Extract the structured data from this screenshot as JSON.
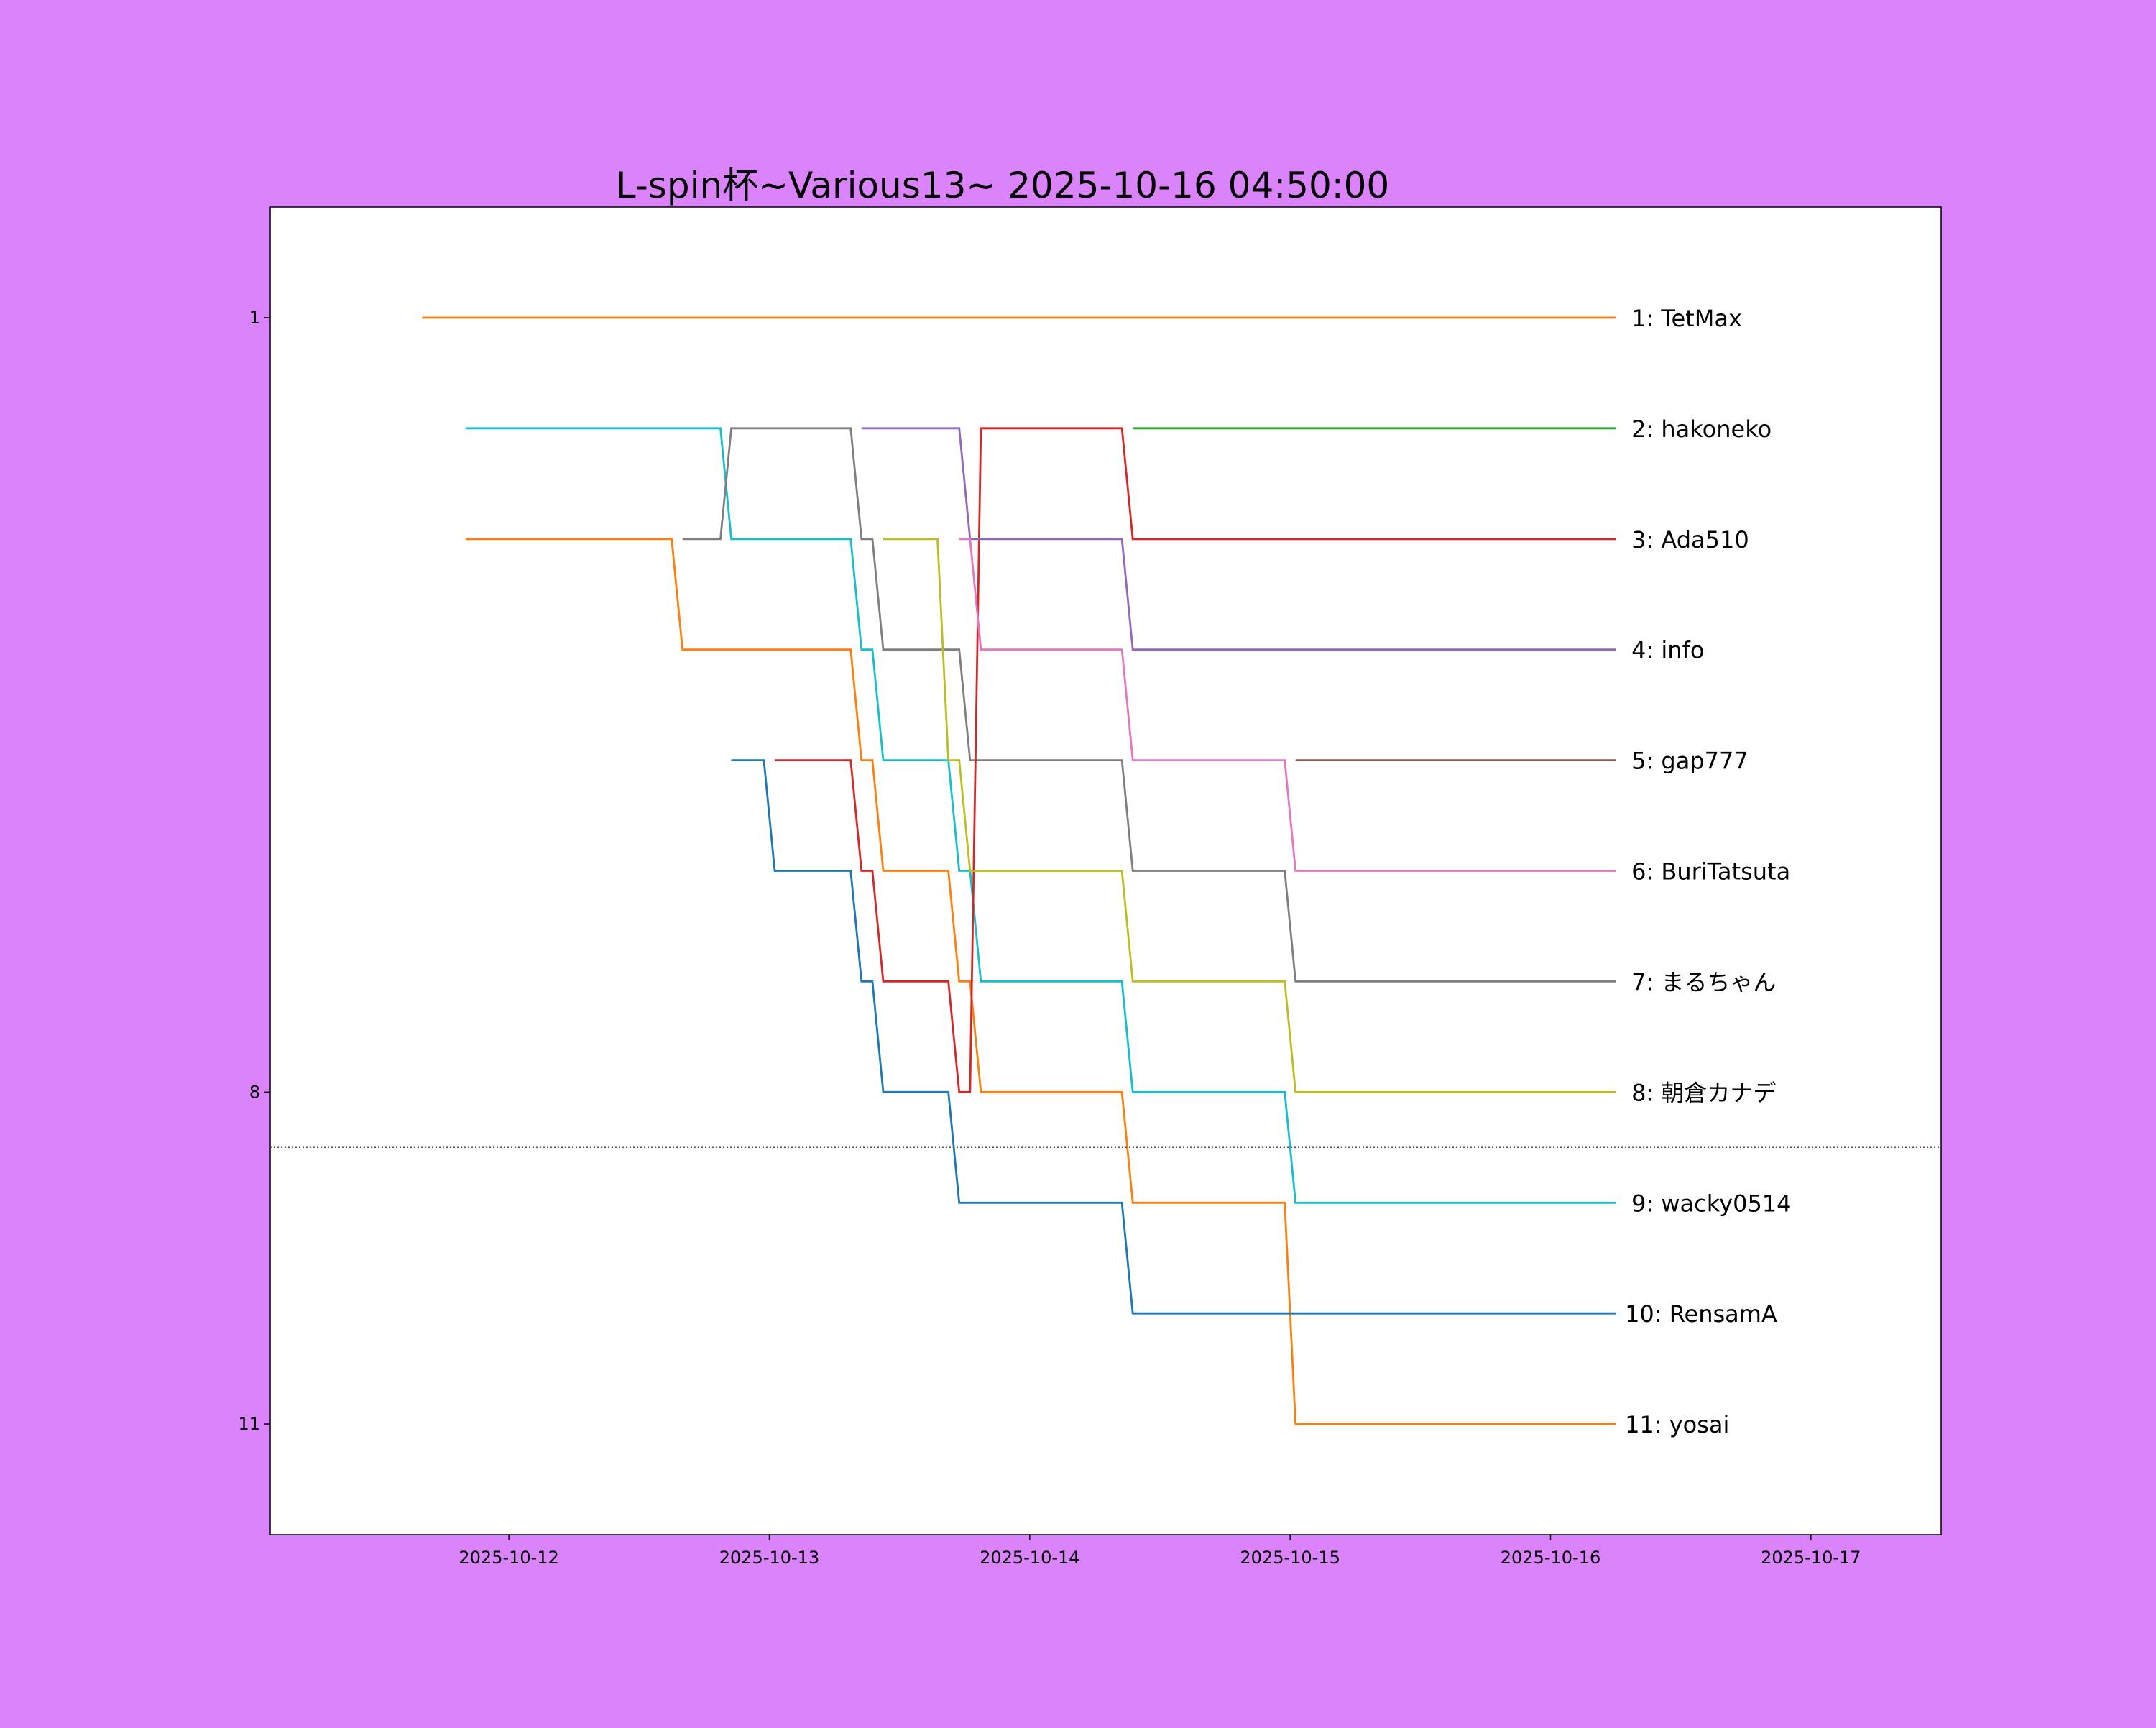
{
  "chart_data": {
    "type": "line",
    "title": "L-spin杯~Various13~ 2025-10-16 04:50:00",
    "xlabel": "",
    "ylabel": "",
    "x_axis": {
      "type": "date",
      "range": [
        "2025-10-11 02:00",
        "2025-10-17 12:00"
      ],
      "ticks": [
        "2025-10-12",
        "2025-10-13",
        "2025-10-14",
        "2025-10-15",
        "2025-10-16",
        "2025-10-17"
      ]
    },
    "y_axis": {
      "inverted": true,
      "range": [
        0,
        12
      ],
      "ticks": [
        1,
        8,
        11
      ]
    },
    "cutoff_line": {
      "rank": 8.5,
      "style": "dotted"
    },
    "grid": false,
    "legend": "none; labels at right end of each line",
    "series": [
      {
        "color": "#ff7f0e",
        "points": [
          [
            "2025-10-11 16:00",
            1
          ],
          [
            "2025-10-16 06:00",
            1
          ]
        ]
      },
      {
        "color": "#17becf",
        "points": [
          [
            "2025-10-11 20:00",
            2
          ],
          [
            "2025-10-12 19:30",
            2
          ],
          [
            "2025-10-12 20:30",
            3
          ],
          [
            "2025-10-13 07:30",
            3
          ],
          [
            "2025-10-13 08:30",
            4
          ],
          [
            "2025-10-13 09:30",
            4
          ],
          [
            "2025-10-13 10:30",
            5
          ],
          [
            "2025-10-13 16:30",
            5
          ],
          [
            "2025-10-13 17:30",
            6
          ],
          [
            "2025-10-13 18:30",
            6
          ],
          [
            "2025-10-13 19:30",
            7
          ],
          [
            "2025-10-14 08:30",
            7
          ],
          [
            "2025-10-14 09:30",
            8
          ],
          [
            "2025-10-14 23:30",
            8
          ],
          [
            "2025-10-15 00:30",
            9
          ],
          [
            "2025-10-16 06:00",
            9
          ]
        ]
      },
      {
        "color": "#ff7f0e",
        "points": [
          [
            "2025-10-11 20:00",
            3
          ],
          [
            "2025-10-12 15:00",
            3
          ],
          [
            "2025-10-12 16:00",
            4
          ],
          [
            "2025-10-13 07:30",
            4
          ],
          [
            "2025-10-13 08:30",
            5
          ],
          [
            "2025-10-13 09:30",
            5
          ],
          [
            "2025-10-13 10:30",
            6
          ],
          [
            "2025-10-13 16:30",
            6
          ],
          [
            "2025-10-13 17:30",
            7
          ],
          [
            "2025-10-13 18:30",
            7
          ],
          [
            "2025-10-13 19:30",
            8
          ],
          [
            "2025-10-14 08:30",
            8
          ],
          [
            "2025-10-14 09:30",
            9
          ],
          [
            "2025-10-14 23:30",
            9
          ],
          [
            "2025-10-15 00:30",
            11
          ],
          [
            "2025-10-16 06:00",
            11
          ]
        ]
      },
      {
        "color": "#7f7f7f",
        "points": [
          [
            "2025-10-12 16:00",
            3
          ],
          [
            "2025-10-12 19:30",
            3
          ],
          [
            "2025-10-12 20:30",
            2
          ],
          [
            "2025-10-13 07:30",
            2
          ],
          [
            "2025-10-13 08:30",
            3
          ],
          [
            "2025-10-13 09:30",
            3
          ],
          [
            "2025-10-13 10:30",
            4
          ],
          [
            "2025-10-13 17:30",
            4
          ],
          [
            "2025-10-13 18:30",
            5
          ],
          [
            "2025-10-14 08:30",
            5
          ],
          [
            "2025-10-14 09:30",
            6
          ],
          [
            "2025-10-14 23:30",
            6
          ],
          [
            "2025-10-15 00:30",
            7
          ],
          [
            "2025-10-16 06:00",
            7
          ]
        ]
      },
      {
        "color": "#1f77b4",
        "points": [
          [
            "2025-10-12 20:30",
            5
          ],
          [
            "2025-10-12 23:30",
            5
          ],
          [
            "2025-10-13 00:30",
            6
          ],
          [
            "2025-10-13 07:30",
            6
          ],
          [
            "2025-10-13 08:30",
            7
          ],
          [
            "2025-10-13 09:30",
            7
          ],
          [
            "2025-10-13 10:30",
            8
          ],
          [
            "2025-10-13 16:30",
            8
          ],
          [
            "2025-10-13 17:30",
            9
          ],
          [
            "2025-10-14 08:30",
            9
          ],
          [
            "2025-10-14 09:30",
            10
          ],
          [
            "2025-10-16 06:00",
            10
          ]
        ]
      },
      {
        "color": "#d62728",
        "points": [
          [
            "2025-10-13 00:30",
            5
          ],
          [
            "2025-10-13 07:30",
            5
          ],
          [
            "2025-10-13 08:30",
            6
          ],
          [
            "2025-10-13 09:30",
            6
          ],
          [
            "2025-10-13 10:30",
            7
          ],
          [
            "2025-10-13 16:30",
            7
          ],
          [
            "2025-10-13 17:30",
            8
          ],
          [
            "2025-10-13 18:30",
            8
          ],
          [
            "2025-10-13 19:30",
            2
          ],
          [
            "2025-10-14 08:30",
            2
          ],
          [
            "2025-10-14 09:30",
            3
          ],
          [
            "2025-10-16 06:00",
            3
          ]
        ]
      },
      {
        "color": "#9467bd",
        "points": [
          [
            "2025-10-13 08:30",
            2
          ],
          [
            "2025-10-13 17:30",
            2
          ],
          [
            "2025-10-13 18:30",
            3
          ],
          [
            "2025-10-14 08:30",
            3
          ],
          [
            "2025-10-14 09:30",
            4
          ],
          [
            "2025-10-16 06:00",
            4
          ]
        ]
      },
      {
        "color": "#bcbd22",
        "points": [
          [
            "2025-10-13 10:30",
            3
          ],
          [
            "2025-10-13 15:30",
            3
          ],
          [
            "2025-10-13 16:30",
            5
          ],
          [
            "2025-10-13 17:30",
            5
          ],
          [
            "2025-10-13 18:30",
            6
          ],
          [
            "2025-10-14 08:30",
            6
          ],
          [
            "2025-10-14 09:30",
            7
          ],
          [
            "2025-10-14 23:30",
            7
          ],
          [
            "2025-10-15 00:30",
            8
          ],
          [
            "2025-10-16 06:00",
            8
          ]
        ]
      },
      {
        "color": "#e377c2",
        "points": [
          [
            "2025-10-13 17:30",
            3
          ],
          [
            "2025-10-13 18:30",
            3
          ],
          [
            "2025-10-13 19:30",
            4
          ],
          [
            "2025-10-14 08:30",
            4
          ],
          [
            "2025-10-14 09:30",
            5
          ],
          [
            "2025-10-14 23:30",
            5
          ],
          [
            "2025-10-15 00:30",
            6
          ],
          [
            "2025-10-16 06:00",
            6
          ]
        ]
      },
      {
        "color": "#2ca02c",
        "points": [
          [
            "2025-10-14 09:30",
            2
          ],
          [
            "2025-10-16 06:00",
            2
          ]
        ]
      },
      {
        "color": "#8c564b",
        "points": [
          [
            "2025-10-15 00:30",
            5
          ],
          [
            "2025-10-16 06:00",
            5
          ]
        ]
      }
    ],
    "end_labels": [
      {
        "rank": 1,
        "text": "1: TetMax"
      },
      {
        "rank": 2,
        "text": "2: hakoneko"
      },
      {
        "rank": 3,
        "text": "3: Ada510"
      },
      {
        "rank": 4,
        "text": "4: info"
      },
      {
        "rank": 5,
        "text": "5: gap777"
      },
      {
        "rank": 6,
        "text": "6: BuriTatsuta"
      },
      {
        "rank": 7,
        "text": "7: まるちゃん"
      },
      {
        "rank": 8,
        "text": "8: 朝倉カナデ"
      },
      {
        "rank": 9,
        "text": "9: wacky0514"
      },
      {
        "rank": 10,
        "text": "10: RensamA"
      },
      {
        "rank": 11,
        "text": "11: yosai"
      }
    ]
  }
}
